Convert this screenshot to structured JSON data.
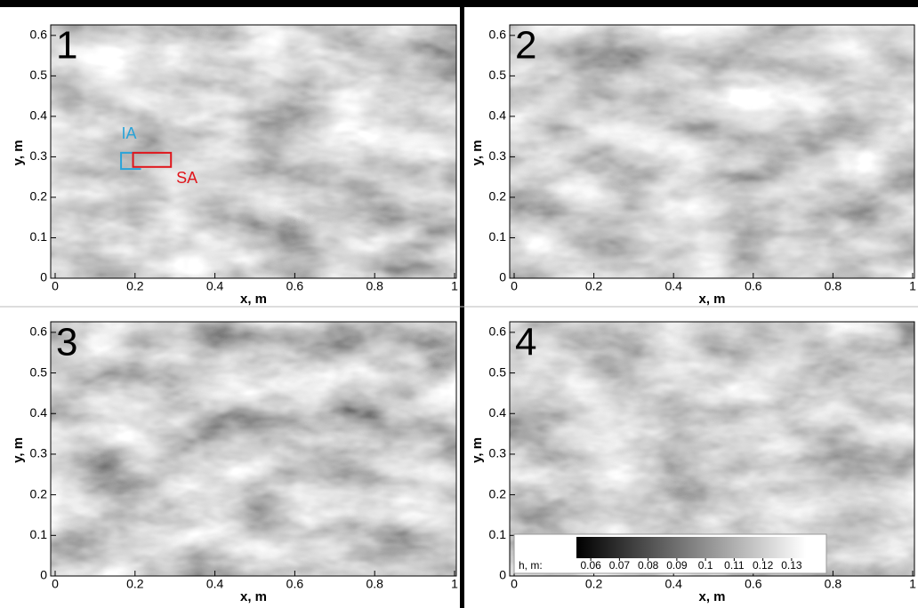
{
  "chart_data": [
    {
      "type": "heightmap",
      "label": "1",
      "xlabel": "x, m",
      "ylabel": "y, m",
      "xlim": [
        0,
        1
      ],
      "ylim": [
        0,
        0.626
      ],
      "xticks": [
        0,
        0.2,
        0.4,
        0.6,
        0.8,
        1
      ],
      "yticks": [
        0,
        0.1,
        0.2,
        0.3,
        0.4,
        0.5,
        0.6
      ],
      "annotations": [
        {
          "text": "IA",
          "color": "#29a3d8"
        },
        {
          "text": "SA",
          "color": "#e0151b"
        }
      ]
    },
    {
      "type": "heightmap",
      "label": "2",
      "xlabel": "x, m",
      "ylabel": "y, m",
      "xlim": [
        0,
        1
      ],
      "ylim": [
        0,
        0.626
      ],
      "xticks": [
        0,
        0.2,
        0.4,
        0.6,
        0.8,
        1
      ],
      "yticks": [
        0,
        0.1,
        0.2,
        0.3,
        0.4,
        0.5,
        0.6
      ]
    },
    {
      "type": "heightmap",
      "label": "3",
      "xlabel": "x, m",
      "ylabel": "y, m",
      "xlim": [
        0,
        1
      ],
      "ylim": [
        0,
        0.626
      ],
      "xticks": [
        0,
        0.2,
        0.4,
        0.6,
        0.8,
        1
      ],
      "yticks": [
        0,
        0.1,
        0.2,
        0.3,
        0.4,
        0.5,
        0.6
      ]
    },
    {
      "type": "heightmap",
      "label": "4",
      "xlabel": "x, m",
      "ylabel": "y, m",
      "xlim": [
        0,
        1
      ],
      "ylim": [
        0,
        0.626
      ],
      "xticks": [
        0,
        0.2,
        0.4,
        0.6,
        0.8,
        1
      ],
      "yticks": [
        0,
        0.1,
        0.2,
        0.3,
        0.4,
        0.5,
        0.6
      ],
      "colorbar": {
        "label": "h, m:",
        "lim": [
          0.055,
          0.135
        ],
        "ticks": [
          0.06,
          0.07,
          0.08,
          0.09,
          0.1,
          0.11,
          0.12,
          0.13
        ]
      }
    }
  ]
}
